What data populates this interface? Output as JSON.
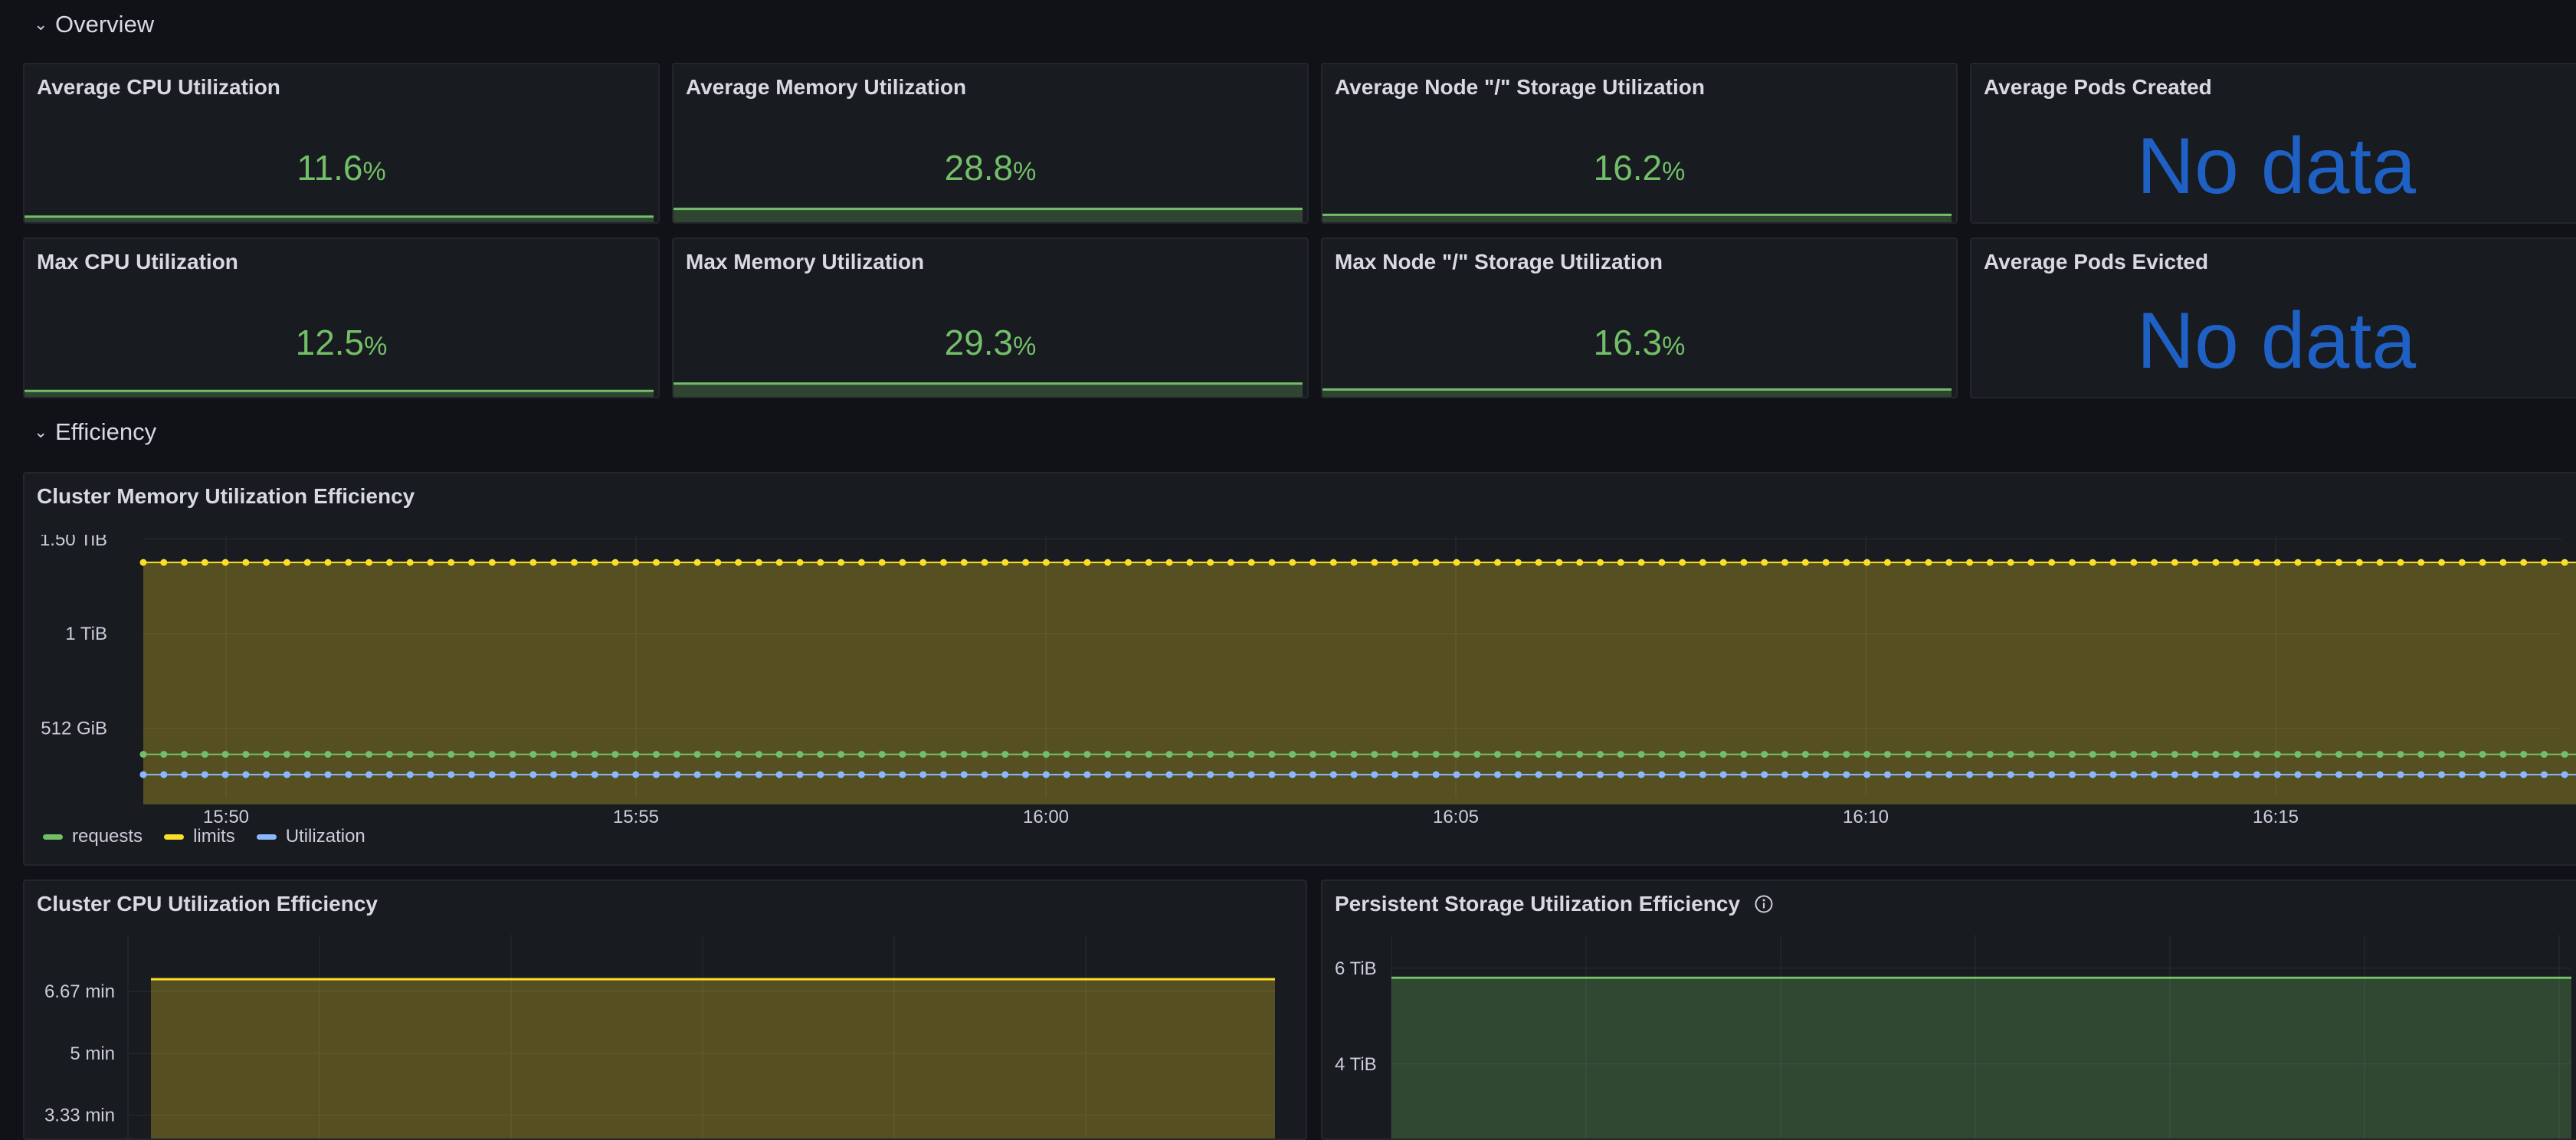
{
  "rows": {
    "overview": "Overview",
    "efficiency": "Efficiency"
  },
  "stats": [
    {
      "title": "Average CPU Utilization",
      "value": "11.6",
      "unit": "%",
      "fill": 0.12
    },
    {
      "title": "Average Memory Utilization",
      "value": "28.8",
      "unit": "%",
      "fill": 0.29
    },
    {
      "title": "Average Node \"/\" Storage Utilization",
      "value": "16.2",
      "unit": "%",
      "fill": 0.16
    },
    {
      "title": "Average Pods Created",
      "nodata": "No data"
    },
    {
      "title": "Max CPU Utilization",
      "value": "12.5",
      "unit": "%",
      "fill": 0.13
    },
    {
      "title": "Max Memory Utilization",
      "value": "29.3",
      "unit": "%",
      "fill": 0.29
    },
    {
      "title": "Max Node \"/\" Storage Utilization",
      "value": "16.3",
      "unit": "%",
      "fill": 0.16
    },
    {
      "title": "Average Pods Evicted",
      "nodata": "No data"
    }
  ],
  "memory_panel": {
    "title": "Cluster Memory Utilization Efficiency"
  },
  "cpu_panel": {
    "title": "Cluster CPU Utilization Efficiency"
  },
  "storage_panel": {
    "title": "Persistent Storage Utilization Efficiency",
    "info_icon": "info-circle-icon"
  },
  "colors": {
    "requests": "#73bf69",
    "limits": "#fade2a",
    "utilization": "#8ab8ff",
    "stat_green": "#73bf69",
    "nodata_blue": "#1f60c4"
  },
  "chart_data": [
    {
      "type": "line",
      "title": "Cluster Memory Utilization Efficiency",
      "x_ticks": [
        "15:50",
        "15:55",
        "16:00",
        "16:05",
        "16:10",
        "16:15"
      ],
      "x_range_minutes": [
        15.82,
        16.313
      ],
      "y_ticks": [
        "512 GiB",
        "1 TiB",
        "1.50 TiB"
      ],
      "y_tick_values_gib": [
        512,
        1024,
        1536
      ],
      "y_range_gib": [
        140,
        1560
      ],
      "series": [
        {
          "name": "requests",
          "color": "#73bf69",
          "value_gib": 370,
          "points": 120
        },
        {
          "name": "limits",
          "color": "#fade2a",
          "value_gib": 1410,
          "points": 120
        },
        {
          "name": "Utilization",
          "color": "#8ab8ff",
          "value_gib": 260,
          "points": 120
        }
      ],
      "fill_series": "limits",
      "legend": [
        "requests",
        "limits",
        "Utilization"
      ],
      "legend_position": "bottom-left"
    },
    {
      "type": "area",
      "title": "Cluster CPU Utilization Efficiency",
      "y_ticks": [
        "3.33 min",
        "5 min",
        "6.67 min"
      ],
      "y_tick_values_min": [
        3.33,
        5,
        6.67
      ],
      "y_range_min": [
        2.0,
        8.2
      ],
      "series": [
        {
          "color": "#fade2a",
          "value_min": 7.0
        }
      ]
    },
    {
      "type": "area",
      "title": "Persistent Storage Utilization Efficiency",
      "y_ticks": [
        "4 TiB",
        "6 TiB"
      ],
      "y_tick_values_tib": [
        4,
        6
      ],
      "y_range_tib": [
        1.9,
        6.7
      ],
      "series": [
        {
          "color": "#73bf69",
          "value_tib": 5.8
        }
      ]
    }
  ]
}
